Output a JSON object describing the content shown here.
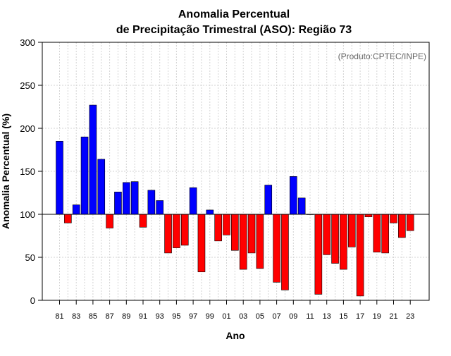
{
  "chart_data": {
    "type": "bar",
    "title_line1": "Anomalia Percentual",
    "title_line2": "de Precipitação Trimestral (ASO): Região 73",
    "watermark": "(Produto:CPTEC/INPE)",
    "xlabel": "Ano",
    "ylabel": "Anomalia Percentual (%)",
    "ylim": [
      0,
      300
    ],
    "yticks": [
      0,
      50,
      100,
      150,
      200,
      250,
      300
    ],
    "baseline": 100,
    "grid": true,
    "colors": {
      "above": "#0000ff",
      "below": "#ff0000",
      "axis": "#000000",
      "grid": "#d3d3d3",
      "watermark": "#666666"
    },
    "x_tick_labels": [
      "81",
      "83",
      "85",
      "87",
      "89",
      "91",
      "93",
      "95",
      "97",
      "99",
      "01",
      "03",
      "05",
      "07",
      "09",
      "11",
      "13",
      "15",
      "17",
      "19",
      "21",
      "23"
    ],
    "categories": [
      "81",
      "82",
      "83",
      "84",
      "85",
      "86",
      "87",
      "88",
      "89",
      "90",
      "91",
      "92",
      "93",
      "94",
      "95",
      "96",
      "97",
      "98",
      "99",
      "00",
      "01",
      "02",
      "03",
      "04",
      "05",
      "06",
      "07",
      "08",
      "09",
      "10",
      "11",
      "12",
      "13",
      "14",
      "15",
      "16",
      "17",
      "18",
      "19",
      "20",
      "21",
      "22",
      "23"
    ],
    "values": [
      185,
      90,
      111,
      190,
      227,
      164,
      84,
      126,
      137,
      138,
      85,
      128,
      116,
      55,
      61,
      64,
      131,
      33,
      105,
      69,
      76,
      58,
      36,
      55,
      37,
      134,
      21,
      12,
      144,
      119,
      100,
      7,
      53,
      43,
      36,
      62,
      5,
      97,
      56,
      55,
      90,
      73,
      81
    ]
  }
}
